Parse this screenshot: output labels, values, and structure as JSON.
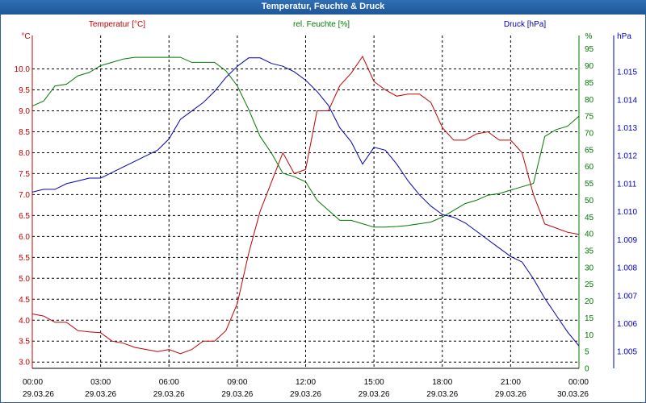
{
  "window": {
    "title": "Temperatur, Feuchte & Druck"
  },
  "colors": {
    "temperature": "#c00000",
    "humidity": "#007800",
    "pressure": "#0000b0"
  },
  "chart_data": {
    "type": "line",
    "title": "Temperatur, Feuchte & Druck",
    "x_ticks": [
      {
        "time": "00:00",
        "date": "29.03.26"
      },
      {
        "time": "03:00",
        "date": "29.03.26"
      },
      {
        "time": "06:00",
        "date": "29.03.26"
      },
      {
        "time": "09:00",
        "date": "29.03.26"
      },
      {
        "time": "12:00",
        "date": "29.03.26"
      },
      {
        "time": "15:00",
        "date": "29.03.26"
      },
      {
        "time": "18:00",
        "date": "29.03.26"
      },
      {
        "time": "21:00",
        "date": "29.03.26"
      },
      {
        "time": "00:00",
        "date": "30.03.26"
      }
    ],
    "x_hours": [
      0,
      0.5,
      1,
      1.5,
      2,
      2.5,
      3,
      3.5,
      4,
      4.5,
      5,
      5.5,
      6,
      6.5,
      7,
      7.5,
      8,
      8.5,
      9,
      9.5,
      10,
      10.5,
      11,
      11.5,
      12,
      12.5,
      13,
      13.5,
      14,
      14.5,
      15,
      15.5,
      16,
      16.5,
      17,
      17.5,
      18,
      18.5,
      19,
      19.5,
      20,
      20.5,
      21,
      21.5,
      22,
      22.5,
      23,
      23.5,
      24
    ],
    "axes": {
      "temperature": {
        "label": "Temperatur [°C]",
        "unit": "°C",
        "range": [
          2.85,
          10.8
        ],
        "ticks": [
          "3.0",
          "3.5",
          "4.0",
          "4.5",
          "5.0",
          "5.5",
          "6.0",
          "6.5",
          "7.0",
          "7.5",
          "8.0",
          "8.5",
          "9.0",
          "9.5",
          "10.0"
        ]
      },
      "humidity": {
        "label": "rel. Feuchte [%]",
        "unit": "%",
        "range": [
          0,
          99
        ],
        "ticks": [
          "0",
          "5",
          "10",
          "15",
          "20",
          "25",
          "30",
          "35",
          "40",
          "45",
          "50",
          "55",
          "60",
          "65",
          "70",
          "75",
          "80",
          "85",
          "90",
          "95"
        ]
      },
      "pressure": {
        "label": "Druck [hPa]",
        "unit": "hPa",
        "range": [
          1.0044,
          1.0163
        ],
        "ticks": [
          "1.005",
          "1.006",
          "1.007",
          "1.008",
          "1.009",
          "1.010",
          "1.011",
          "1.012",
          "1.013",
          "1.014",
          "1.015"
        ]
      }
    },
    "series": [
      {
        "name": "Temperatur",
        "axis": "temperature",
        "values": [
          4.15,
          4.1,
          3.95,
          3.95,
          3.75,
          3.72,
          3.7,
          3.5,
          3.45,
          3.35,
          3.3,
          3.25,
          3.3,
          3.2,
          3.3,
          3.5,
          3.5,
          3.75,
          4.4,
          5.6,
          6.6,
          7.3,
          8.0,
          7.5,
          7.6,
          9.0,
          9.0,
          9.6,
          9.9,
          10.3,
          9.7,
          9.5,
          9.35,
          9.4,
          9.4,
          9.2,
          8.6,
          8.3,
          8.3,
          8.45,
          8.5,
          8.3,
          8.3,
          8.0,
          7.0,
          6.3,
          6.2,
          6.1,
          6.05
        ]
      },
      {
        "name": "rel. Feuchte",
        "axis": "humidity",
        "values": [
          78,
          79.5,
          84,
          84.5,
          87,
          88,
          90,
          91,
          92,
          92.5,
          92.5,
          92.5,
          92.5,
          92.5,
          91,
          91,
          91,
          88.5,
          84,
          77,
          69,
          64,
          58,
          57,
          55.5,
          50,
          47,
          44,
          44,
          43,
          42,
          42,
          42.2,
          42.5,
          43,
          43.5,
          45,
          47,
          49,
          50,
          51.5,
          52,
          53,
          54,
          55,
          69,
          71,
          72,
          75
        ]
      },
      {
        "name": "Druck",
        "axis": "pressure",
        "values": [
          1.0107,
          1.0108,
          1.0108,
          1.011,
          1.0111,
          1.0112,
          1.0112,
          1.0114,
          1.0116,
          1.0118,
          1.012,
          1.0122,
          1.0126,
          1.0133,
          1.0136,
          1.0139,
          1.0143,
          1.0148,
          1.0152,
          1.0155,
          1.0155,
          1.0153,
          1.0152,
          1.015,
          1.0147,
          1.0143,
          1.0138,
          1.013,
          1.0125,
          1.0117,
          1.0123,
          1.0122,
          1.0117,
          1.0111,
          1.0106,
          1.0102,
          1.0099,
          1.0098,
          1.0096,
          1.0093,
          1.009,
          1.0087,
          1.0084,
          1.0082,
          1.0076,
          1.0069,
          1.0063,
          1.0057,
          1.0052
        ]
      }
    ]
  }
}
